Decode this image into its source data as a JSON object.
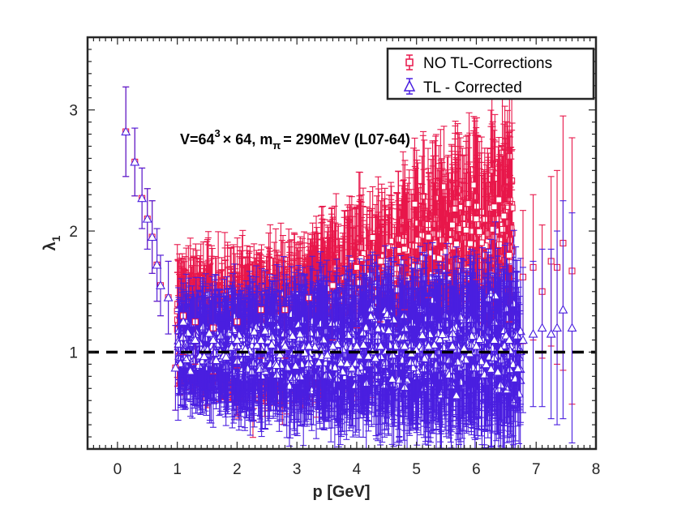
{
  "chart_data": {
    "type": "scatter",
    "title": "",
    "xlabel": "p [GeV]",
    "ylabel": "λ",
    "ylabel_sub": "1",
    "xlim": [
      -0.5,
      8
    ],
    "ylim": [
      0.2,
      3.6
    ],
    "xticks": [
      0,
      1,
      2,
      3,
      4,
      5,
      6,
      7,
      8
    ],
    "xtick_labels": [
      "0",
      "1",
      "2",
      "3",
      "4",
      "5",
      "6",
      "7",
      "8"
    ],
    "yticks": [
      1,
      2,
      3
    ],
    "ytick_labels": [
      "1",
      "2",
      "3"
    ],
    "grid": false,
    "legend_position": "top-right",
    "reference_line": {
      "y": 1,
      "style": "dashed",
      "color": "#000000"
    },
    "annotation": {
      "prefix": "V=64",
      "sup": "3",
      "middle": "× 64, m",
      "sub": "π",
      "suffix": "= 290MeV (L07-64)"
    },
    "series": [
      {
        "name": "NO TL-Corrections",
        "color": "#e8174a",
        "marker": "square",
        "points": [
          [
            0.14,
            2.82,
            0.37
          ],
          [
            0.29,
            2.57,
            0.28
          ],
          [
            0.41,
            2.27,
            0.25
          ],
          [
            0.5,
            2.1,
            0.25
          ],
          [
            0.58,
            1.95,
            0.3
          ],
          [
            0.66,
            1.72,
            0.3
          ],
          [
            0.72,
            1.55,
            0.25
          ],
          [
            0.85,
            1.45,
            0.3
          ],
          [
            0.97,
            0.87,
            0.35
          ],
          [
            1.1,
            1.3,
            0.32
          ],
          [
            1.3,
            1.25,
            0.35
          ],
          [
            1.6,
            1.2,
            0.38
          ],
          [
            2.0,
            1.25,
            0.38
          ],
          [
            2.4,
            1.35,
            0.4
          ],
          [
            2.8,
            1.35,
            0.4
          ],
          [
            3.2,
            1.45,
            0.42
          ],
          [
            3.6,
            1.55,
            0.45
          ],
          [
            4.0,
            1.7,
            0.5
          ],
          [
            4.4,
            1.75,
            0.5
          ],
          [
            4.8,
            1.85,
            0.5
          ],
          [
            5.2,
            1.95,
            0.5
          ],
          [
            5.6,
            2.05,
            0.5
          ],
          [
            6.0,
            2.1,
            0.5
          ],
          [
            6.3,
            2.2,
            0.55
          ],
          [
            6.55,
            1.8,
            0.55
          ],
          [
            6.78,
            1.62,
            0.55
          ],
          [
            6.95,
            1.7,
            0.6
          ],
          [
            7.1,
            1.5,
            0.55
          ],
          [
            7.25,
            1.75,
            0.7
          ],
          [
            7.35,
            1.7,
            0.8
          ],
          [
            7.45,
            1.9,
            1.05
          ],
          [
            7.6,
            1.67,
            1.1
          ]
        ]
      },
      {
        "name": "TL - Corrected",
        "color": "#4a1fe0",
        "marker": "triangle",
        "points": [
          [
            0.14,
            2.82,
            0.37
          ],
          [
            0.29,
            2.57,
            0.28
          ],
          [
            0.41,
            2.27,
            0.25
          ],
          [
            0.5,
            2.1,
            0.25
          ],
          [
            0.58,
            1.95,
            0.3
          ],
          [
            0.66,
            1.72,
            0.3
          ],
          [
            0.72,
            1.55,
            0.25
          ],
          [
            0.85,
            1.45,
            0.3
          ],
          [
            0.97,
            0.87,
            0.35
          ],
          [
            1.1,
            1.25,
            0.32
          ],
          [
            1.3,
            1.1,
            0.35
          ],
          [
            1.6,
            1.1,
            0.38
          ],
          [
            2.0,
            1.1,
            0.38
          ],
          [
            2.4,
            1.1,
            0.4
          ],
          [
            2.8,
            1.05,
            0.4
          ],
          [
            3.2,
            1.05,
            0.42
          ],
          [
            3.6,
            1.05,
            0.45
          ],
          [
            4.0,
            1.05,
            0.5
          ],
          [
            4.4,
            1.05,
            0.5
          ],
          [
            4.8,
            1.05,
            0.5
          ],
          [
            5.2,
            1.05,
            0.5
          ],
          [
            5.6,
            1.05,
            0.5
          ],
          [
            6.0,
            1.05,
            0.5
          ],
          [
            6.3,
            1.1,
            0.55
          ],
          [
            6.55,
            1.1,
            0.55
          ],
          [
            6.78,
            1.1,
            0.6
          ],
          [
            6.95,
            1.15,
            0.6
          ],
          [
            7.1,
            1.2,
            0.65
          ],
          [
            7.25,
            1.15,
            0.7
          ],
          [
            7.35,
            1.2,
            0.8
          ],
          [
            7.45,
            1.35,
            0.9
          ],
          [
            7.6,
            1.2,
            0.95
          ]
        ]
      }
    ],
    "cloud_note": "dense band of overlapping points between p≈1 and p≈6.5 for both series"
  }
}
